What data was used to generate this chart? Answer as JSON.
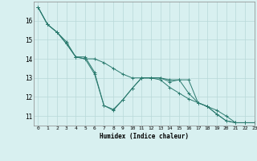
{
  "xlabel": "Humidex (Indice chaleur)",
  "background_color": "#d8f0f0",
  "grid_color": "#b8d8d8",
  "line_color": "#2a7a6e",
  "xlim": [
    -0.5,
    23
  ],
  "ylim": [
    10.5,
    17.0
  ],
  "xticks": [
    0,
    1,
    2,
    3,
    4,
    5,
    6,
    7,
    8,
    9,
    10,
    11,
    12,
    13,
    14,
    15,
    16,
    17,
    18,
    19,
    20,
    21,
    22,
    23
  ],
  "yticks": [
    11,
    12,
    13,
    14,
    15,
    16
  ],
  "series": [
    [
      16.7,
      15.8,
      15.4,
      14.9,
      14.1,
      14.1,
      13.3,
      11.55,
      11.35,
      11.85,
      12.45,
      13.0,
      13.0,
      13.0,
      12.8,
      12.9,
      12.2,
      11.7,
      11.5,
      11.1,
      10.75,
      10.65,
      10.65,
      10.65
    ],
    [
      16.7,
      15.8,
      15.4,
      14.8,
      14.1,
      14.0,
      14.0,
      13.8,
      13.5,
      13.2,
      13.0,
      13.0,
      13.0,
      12.9,
      12.5,
      12.2,
      11.9,
      11.7,
      11.5,
      11.3,
      11.0,
      10.65,
      10.65,
      10.65
    ],
    [
      16.7,
      15.8,
      15.4,
      14.8,
      14.1,
      14.0,
      13.2,
      11.55,
      11.3,
      11.85,
      12.45,
      13.0,
      13.0,
      13.0,
      12.9,
      12.9,
      12.9,
      11.7,
      11.5,
      11.1,
      10.75,
      10.65,
      10.65,
      10.65
    ]
  ]
}
